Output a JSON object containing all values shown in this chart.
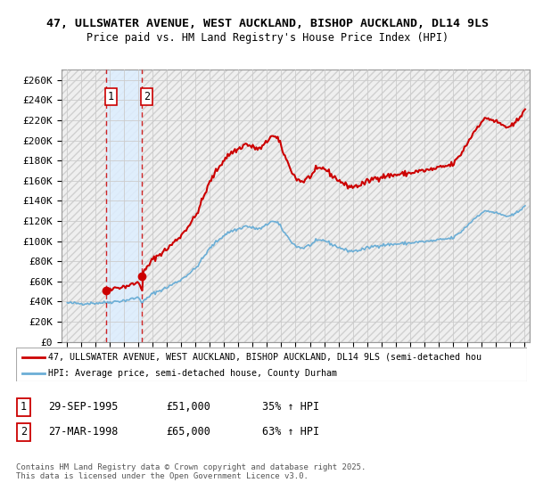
{
  "title_line1": "47, ULLSWATER AVENUE, WEST AUCKLAND, BISHOP AUCKLAND, DL14 9LS",
  "title_line2": "Price paid vs. HM Land Registry's House Price Index (HPI)",
  "ylim": [
    0,
    270000
  ],
  "xlim_start": 1992.6,
  "xlim_end": 2025.4,
  "sale1_date": 1995.75,
  "sale1_price": 51000,
  "sale1_label": "1",
  "sale2_date": 1998.25,
  "sale2_price": 65000,
  "sale2_label": "2",
  "legend_line1": "47, ULLSWATER AVENUE, WEST AUCKLAND, BISHOP AUCKLAND, DL14 9LS (semi-detached hou",
  "legend_line2": "HPI: Average price, semi-detached house, County Durham",
  "footnote": "Contains HM Land Registry data © Crown copyright and database right 2025.\nThis data is licensed under the Open Government Licence v3.0.",
  "table_rows": [
    {
      "label": "1",
      "date": "29-SEP-1995",
      "price": "£51,000",
      "hpi": "35% ↑ HPI"
    },
    {
      "label": "2",
      "date": "27-MAR-1998",
      "price": "£65,000",
      "hpi": "63% ↑ HPI"
    }
  ],
  "hpi_color": "#6baed6",
  "price_color": "#cc0000",
  "grid_color": "#cccccc",
  "highlight_color": "#ddeeff",
  "hatch_color": "#e8e8e8"
}
